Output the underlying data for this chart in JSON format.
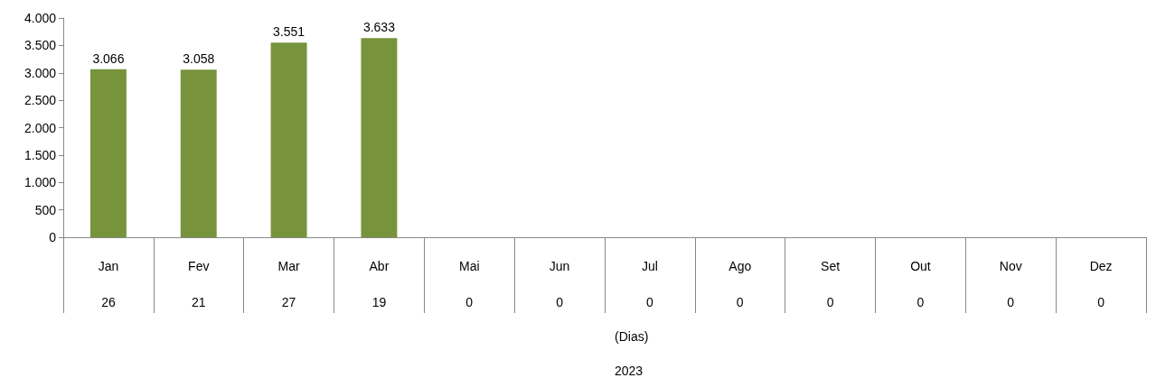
{
  "chart_data": {
    "type": "bar",
    "categories": [
      "Jan\n26",
      "Fev\n21",
      "Mar\n27",
      "Abr\n19",
      "Mai\n0",
      "Jun\n0",
      "Jul\n0",
      "Ago\n0",
      "Set\n0",
      "Out\n0",
      "Nov\n0",
      "Dez\n0"
    ],
    "values": [
      3066,
      3058,
      3551,
      3633,
      null,
      null,
      null,
      null,
      null,
      null,
      null,
      null
    ],
    "value_labels": [
      "3.066",
      "3.058",
      "3.551",
      "3.633",
      null,
      null,
      null,
      null,
      null,
      null,
      null,
      null
    ],
    "color": "#77933c",
    "ylim": [
      0,
      4000
    ],
    "yticks": [
      {
        "value": 0,
        "label": "0"
      },
      {
        "value": 500,
        "label": "500"
      },
      {
        "value": 1000,
        "label": "1.000"
      },
      {
        "value": 1500,
        "label": "1.500"
      },
      {
        "value": 2000,
        "label": "2.000"
      },
      {
        "value": 2500,
        "label": "2.500"
      },
      {
        "value": 3000,
        "label": "3.000"
      },
      {
        "value": 3500,
        "label": "3.500"
      },
      {
        "value": 4000,
        "label": "4.000"
      }
    ],
    "annotations": [
      "(Dias)",
      "2023"
    ],
    "grid": false
  }
}
